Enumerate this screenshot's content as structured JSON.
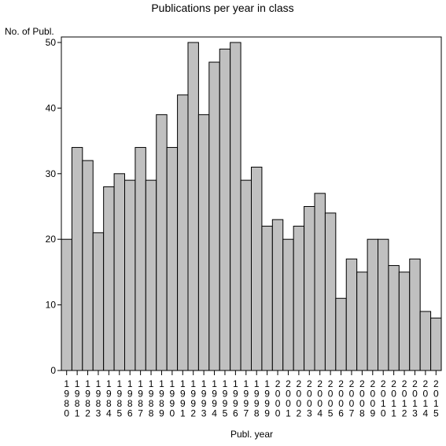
{
  "chart_data": {
    "type": "bar",
    "title": "Publications per year in class",
    "ylabel": "No. of Publ.",
    "xlabel": "Publ. year",
    "ylim": [
      0,
      50
    ],
    "yticks": [
      0,
      10,
      20,
      30,
      40,
      50
    ],
    "grid": false,
    "colors": {
      "bar_fill": "#c0c0c0",
      "bar_stroke": "#000000",
      "background": "#ffffff"
    },
    "categories": [
      "1980",
      "1981",
      "1982",
      "1983",
      "1984",
      "1985",
      "1986",
      "1987",
      "1988",
      "1989",
      "1990",
      "1991",
      "1992",
      "1993",
      "1994",
      "1995",
      "1996",
      "1997",
      "1998",
      "1999",
      "2000",
      "2001",
      "2002",
      "2003",
      "2004",
      "2005",
      "2006",
      "2007",
      "2008",
      "2009",
      "2010",
      "2011",
      "2012",
      "2013",
      "2014",
      "2015"
    ],
    "values": [
      20,
      34,
      32,
      21,
      28,
      30,
      29,
      34,
      29,
      39,
      34,
      42,
      50,
      39,
      47,
      49,
      50,
      29,
      31,
      22,
      23,
      20,
      22,
      25,
      27,
      24,
      11,
      17,
      15,
      20,
      20,
      16,
      15,
      17,
      9,
      8
    ]
  }
}
